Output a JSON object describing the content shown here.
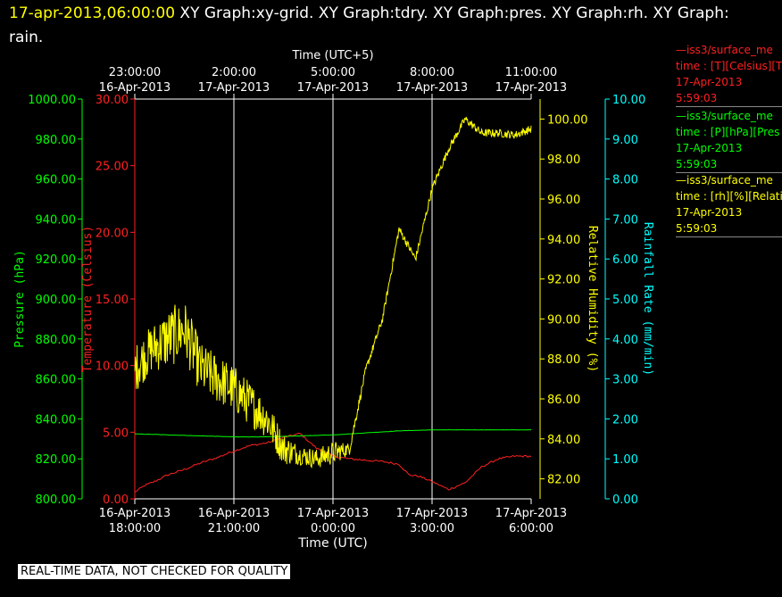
{
  "header": {
    "timestamp": "17-apr-2013,06:00:00",
    "rest": " XY Graph:xy-grid.  XY Graph:tdry.  XY Graph:pres.  XY Graph:rh.  XY Graph: rain."
  },
  "legend": [
    {
      "line1": "—iss3/surface_me",
      "line2": "time : [T][Celsius][T",
      "line3": "17-Apr-2013",
      "line4": "5:59:03",
      "color": "#ff2020"
    },
    {
      "line1": "—iss3/surface_me",
      "line2": "time : [P][hPa][Pres",
      "line3": "17-Apr-2013",
      "line4": "5:59:03",
      "color": "#00ff00"
    },
    {
      "line1": "—iss3/surface_me",
      "line2": "time : [rh][%][Relati",
      "line3": "17-Apr-2013",
      "line4": "5:59:03",
      "color": "#ffff00"
    }
  ],
  "disclaimer": "REAL-TIME DATA, NOT CHECKED FOR QUALITY",
  "chart_data": {
    "type": "line",
    "grid": true,
    "colors": {
      "temperature": "#ff2020",
      "pressure": "#00ff00",
      "humidity": "#ffff00",
      "rainfall": "#00ffff",
      "grid": "#ffffff",
      "frame": "#ffffff"
    },
    "bottom_axis": {
      "label": "Time (UTC)",
      "ticks": [
        {
          "line1": "16-Apr-2013",
          "line2": "18:00:00"
        },
        {
          "line1": "16-Apr-2013",
          "line2": "21:00:00"
        },
        {
          "line1": "17-Apr-2013",
          "line2": "0:00:00"
        },
        {
          "line1": "17-Apr-2013",
          "line2": "3:00:00"
        },
        {
          "line1": "17-Apr-2013",
          "line2": "6:00:00"
        }
      ]
    },
    "top_axis": {
      "label": "Time (UTC+5)",
      "ticks": [
        {
          "line1": "23:00:00",
          "line2": "16-Apr-2013"
        },
        {
          "line1": "2:00:00",
          "line2": "17-Apr-2013"
        },
        {
          "line1": "5:00:00",
          "line2": "17-Apr-2013"
        },
        {
          "line1": "8:00:00",
          "line2": "17-Apr-2013"
        },
        {
          "line1": "11:00:00",
          "line2": "17-Apr-2013"
        }
      ]
    },
    "x_hours_range": [
      0,
      12
    ],
    "axes": {
      "pressure": {
        "label": "Pressure (hPa)",
        "range": [
          800,
          1000
        ],
        "ticks": [
          "800.00",
          "820.00",
          "840.00",
          "860.00",
          "880.00",
          "900.00",
          "920.00",
          "940.00",
          "960.00",
          "980.00",
          "1000.00"
        ]
      },
      "temperature": {
        "label": "Temperature (Celsius)",
        "range": [
          0,
          30
        ],
        "ticks": [
          "0.00",
          "5.00",
          "10.00",
          "15.00",
          "20.00",
          "25.00",
          "30.00"
        ]
      },
      "humidity": {
        "label": "Relative Humidity (%)",
        "range": [
          81,
          101
        ],
        "ticks": [
          "82.00",
          "84.00",
          "86.00",
          "88.00",
          "90.00",
          "92.00",
          "94.00",
          "96.00",
          "98.00",
          "100.00"
        ]
      },
      "rainfall": {
        "label": "Rainfall Rate (mm/min)",
        "range": [
          0,
          10
        ],
        "ticks": [
          "0.00",
          "1.00",
          "2.00",
          "3.00",
          "4.00",
          "5.00",
          "6.00",
          "7.00",
          "8.00",
          "9.00",
          "10.00"
        ]
      }
    },
    "series": [
      {
        "name": "iss3/surface_me time : [T][Celsius][T",
        "axis": "temperature",
        "x": [
          0,
          0.3,
          0.6,
          1,
          1.5,
          2,
          2.5,
          3,
          3.5,
          4,
          4.5,
          5,
          5.5,
          6,
          6.5,
          7,
          7.5,
          8,
          8.3,
          8.6,
          9,
          9.5,
          10,
          10.5,
          11,
          11.5,
          12
        ],
        "y": [
          0.5,
          1.0,
          1.3,
          1.8,
          2.2,
          2.7,
          3.1,
          3.6,
          4.0,
          4.2,
          4.6,
          4.9,
          3.8,
          3.2,
          3.0,
          2.9,
          2.8,
          2.6,
          1.8,
          1.7,
          1.3,
          0.7,
          1.2,
          2.4,
          3.0,
          3.2,
          3.2
        ]
      },
      {
        "name": "iss3/surface_me time : [P][hPa][Pres",
        "axis": "pressure",
        "x": [
          0,
          1,
          2,
          3,
          4,
          5,
          6,
          7,
          8,
          9,
          10,
          11,
          12
        ],
        "y": [
          832.5,
          832.0,
          831.5,
          831.0,
          831.0,
          831.5,
          832.0,
          833.0,
          834.0,
          834.5,
          834.5,
          834.5,
          834.5
        ]
      },
      {
        "name": "iss3/surface_me time : [rh][%][Relati",
        "axis": "humidity",
        "noise": [
          1.2,
          1.2,
          1.5,
          1.5,
          1.3,
          1.2,
          1.0,
          0.8,
          0.5,
          0.5,
          0.6,
          0.3,
          0.2,
          0.2,
          0.2,
          0.2,
          0.2,
          0.2,
          0.2,
          0.2,
          0.2,
          0.2,
          0.2
        ],
        "x": [
          0,
          0.5,
          1,
          1.5,
          2,
          3,
          4,
          4.5,
          5,
          5.5,
          6,
          6.5,
          7,
          7.5,
          8,
          8.5,
          9,
          9.5,
          10,
          10.5,
          11,
          11.5,
          12
        ],
        "y": [
          87.5,
          88.5,
          89.0,
          89.5,
          87.5,
          86.5,
          85.0,
          83.5,
          83.2,
          83.0,
          83.3,
          83.5,
          87.5,
          90.0,
          94.5,
          93.0,
          96.5,
          98.5,
          100.0,
          99.3,
          99.3,
          99.2,
          99.5
        ]
      }
    ]
  }
}
